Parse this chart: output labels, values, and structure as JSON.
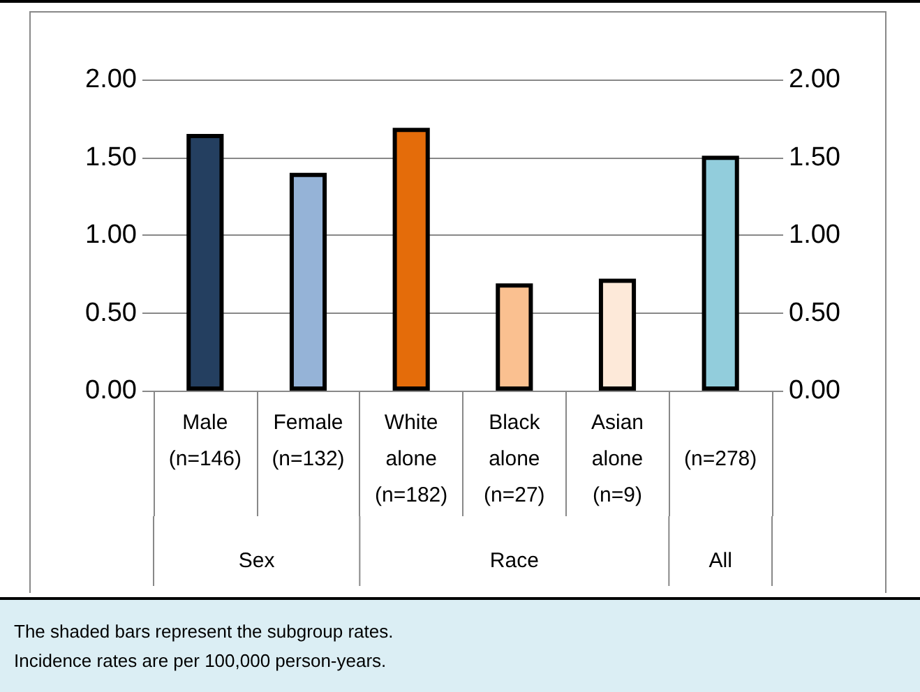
{
  "chart_data": {
    "type": "bar",
    "categories": [
      "Male\n(n=146)",
      "Female\n(n=132)",
      "White\nalone\n(n=182)",
      "Black\nalone\n(n=27)",
      "Asian\nalone\n(n=9)",
      "\n(n=278)"
    ],
    "values": [
      1.65,
      1.4,
      1.69,
      0.69,
      0.72,
      1.51
    ],
    "colors": [
      "#243f60",
      "#95b3d7",
      "#e46c0a",
      "#fac090",
      "#fde9d9",
      "#92cddc"
    ],
    "ylim": [
      0,
      2
    ],
    "yticks": [
      {
        "value": 0,
        "label": "0.00"
      },
      {
        "value": 0.5,
        "label": "0.50"
      },
      {
        "value": 1,
        "label": "1.00"
      },
      {
        "value": 1.5,
        "label": "1.50"
      },
      {
        "value": 2,
        "label": "2.00"
      }
    ],
    "y2lim": [
      0,
      2
    ],
    "y2ticks": [
      {
        "value": 0,
        "label": "0.00"
      },
      {
        "value": 0.5,
        "label": "0.50"
      },
      {
        "value": 1,
        "label": "1.00"
      },
      {
        "value": 1.5,
        "label": "1.50"
      },
      {
        "value": 2,
        "label": "2.00"
      }
    ],
    "grid": "y",
    "annotations": [
      "Sex",
      "Race",
      "All",
      "The shaded bars represent the subgroup rates.\nIncidence rates are per 100,000 person-years."
    ]
  }
}
